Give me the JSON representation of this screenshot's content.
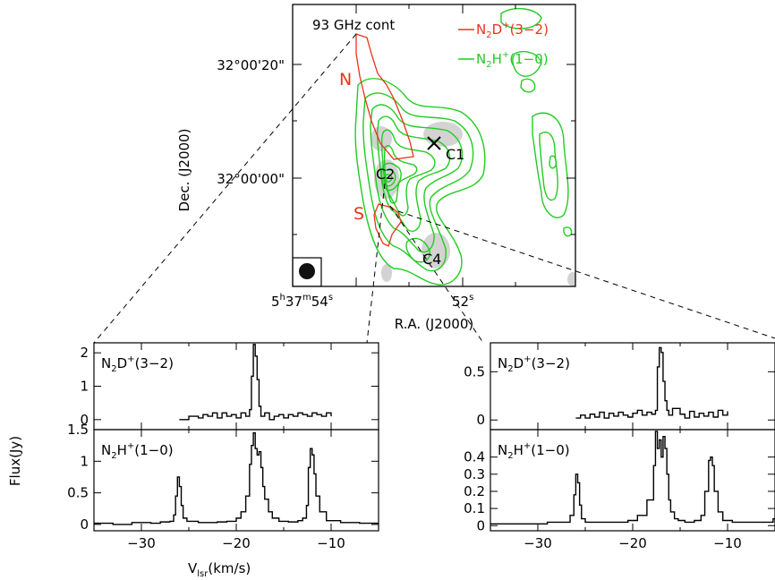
{
  "map": {
    "continuum_label": "93 GHz cont",
    "legend": [
      {
        "prefix": "N",
        "sub": "2",
        "mid": "D",
        "sup": "+",
        "suffix": "(3−2)",
        "color": "#e8331b"
      },
      {
        "prefix": "N",
        "sub": "2",
        "mid": "H",
        "sup": "+",
        "suffix": "(1−0)",
        "color": "#22cc22"
      }
    ],
    "ylabel": "Dec. (J2000)",
    "xlabel": "R.A. (J2000)",
    "dec_ticks": [
      "32°00'20\"",
      "32°00'00\""
    ],
    "ra_tick_left": {
      "h": "5",
      "m": "37",
      "s": "54"
    },
    "ra_tick_right": {
      "s": "52"
    },
    "regions": [
      "N",
      "S"
    ],
    "sources": [
      "C1",
      "C2",
      "C4"
    ]
  },
  "chart_data": [
    {
      "type": "line",
      "panel": "left-top",
      "label": {
        "prefix": "N",
        "sub": "2",
        "mid": "D",
        "sup": "+",
        "suffix": "(3−2)"
      },
      "xlim": [
        -35,
        -5
      ],
      "ylim": [
        -0.3,
        2.3
      ],
      "yticks": [
        "0",
        "1",
        "2"
      ],
      "ytick_values": [
        0,
        1,
        2
      ],
      "x": [
        -26,
        -25,
        -24,
        -23.5,
        -23,
        -22.5,
        -22,
        -21.5,
        -21,
        -20.5,
        -20,
        -19.5,
        -19,
        -18.6,
        -18.4,
        -18.2,
        -18.0,
        -17.8,
        -17.6,
        -17.4,
        -17,
        -16.5,
        -16,
        -15.5,
        -15,
        -14.5,
        -14,
        -13.5,
        -13,
        -12.5,
        -12,
        -11.5,
        -11,
        -10.5,
        -10
      ],
      "y": [
        0,
        0.1,
        0.05,
        0.15,
        0.1,
        0.2,
        0.05,
        0.2,
        0.1,
        0.15,
        0.05,
        0.2,
        0.1,
        0.3,
        1.3,
        2.25,
        1.9,
        1.2,
        0.4,
        0.1,
        0.2,
        0,
        0.1,
        0.15,
        0.05,
        0.15,
        0.1,
        0.2,
        0.15,
        0.1,
        0.2,
        0.15,
        0.1,
        0.2,
        0.1
      ]
    },
    {
      "type": "line",
      "panel": "left-bottom",
      "label": {
        "prefix": "N",
        "sub": "2",
        "mid": "H",
        "sup": "+",
        "suffix": "(1−0)"
      },
      "xlim": [
        -35,
        -5
      ],
      "ylim": [
        -0.1,
        1.5
      ],
      "yticks": [
        "0",
        "0.5",
        "1",
        "1.5"
      ],
      "ytick_values": [
        0,
        0.5,
        1,
        1.5
      ],
      "x": [
        -35,
        -33,
        -31,
        -29,
        -28,
        -27,
        -26.6,
        -26.4,
        -26.2,
        -26.0,
        -25.8,
        -25.6,
        -25.2,
        -24,
        -22,
        -21,
        -20,
        -19.5,
        -19,
        -18.6,
        -18.4,
        -18.2,
        -18.0,
        -17.8,
        -17.6,
        -17.4,
        -17.2,
        -17.0,
        -16.6,
        -16.2,
        -15.5,
        -14.5,
        -13.5,
        -13,
        -12.6,
        -12.4,
        -12.2,
        -12.0,
        -11.8,
        -11.6,
        -11.2,
        -10.5,
        -9,
        -7,
        -5
      ],
      "y": [
        0.02,
        0,
        0.03,
        0.02,
        0.04,
        0.05,
        0.15,
        0.45,
        0.75,
        0.6,
        0.3,
        0.1,
        0.05,
        0.03,
        0.04,
        0.05,
        0.1,
        0.2,
        0.45,
        0.95,
        1.25,
        1.45,
        1.2,
        1.1,
        1.15,
        0.9,
        0.6,
        0.4,
        0.2,
        0.1,
        0.05,
        0.04,
        0.06,
        0.1,
        0.3,
        0.9,
        1.2,
        1.1,
        0.8,
        0.45,
        0.2,
        0.06,
        0.03,
        0.02,
        0.02
      ]
    },
    {
      "type": "line",
      "panel": "right-top",
      "label": {
        "prefix": "N",
        "sub": "2",
        "mid": "D",
        "sup": "+",
        "suffix": "(3−2)"
      },
      "xlim": [
        -35,
        -5
      ],
      "ylim": [
        -0.1,
        0.8
      ],
      "yticks": [
        "0",
        "0.5"
      ],
      "ytick_values": [
        0,
        0.5
      ],
      "x": [
        -26,
        -25.5,
        -25,
        -24.5,
        -24,
        -23.5,
        -23,
        -22.5,
        -22,
        -21.5,
        -21,
        -20.5,
        -20,
        -19.5,
        -19,
        -18.5,
        -18,
        -17.6,
        -17.4,
        -17.2,
        -17.0,
        -16.8,
        -16.6,
        -16.4,
        -16.2,
        -15.8,
        -15,
        -14.5,
        -14,
        -13.5,
        -13,
        -12.5,
        -12,
        -11.5,
        -11,
        -10.5,
        -10
      ],
      "y": [
        0.02,
        0.05,
        0.02,
        0.06,
        0.03,
        0.08,
        0.02,
        0.07,
        0.04,
        0.08,
        0.05,
        0.03,
        0.07,
        0.1,
        0.05,
        0.08,
        0.06,
        0.1,
        0.55,
        0.75,
        0.7,
        0.4,
        0.2,
        0.1,
        0.05,
        0.12,
        0.06,
        0.02,
        0.09,
        0.03,
        0.07,
        0.04,
        0.08,
        0.03,
        0.1,
        0.05,
        0.09
      ]
    },
    {
      "type": "line",
      "panel": "right-bottom",
      "label": {
        "prefix": "N",
        "sub": "2",
        "mid": "H",
        "sup": "+",
        "suffix": "(1−0)"
      },
      "xlim": [
        -35,
        -5
      ],
      "ylim": [
        -0.03,
        0.56
      ],
      "yticks": [
        "0",
        "0.1",
        "0.2",
        "0.3",
        "0.4"
      ],
      "ytick_values": [
        0,
        0.1,
        0.2,
        0.3,
        0.4
      ],
      "x": [
        -35,
        -33,
        -31,
        -29,
        -27.5,
        -26.6,
        -26.2,
        -26.0,
        -25.8,
        -25.6,
        -25.4,
        -25.0,
        -24,
        -22,
        -20.5,
        -19.5,
        -18.5,
        -17.8,
        -17.6,
        -17.4,
        -17.2,
        -17.0,
        -16.8,
        -16.6,
        -16.4,
        -16.2,
        -16.0,
        -15.6,
        -15.2,
        -14.5,
        -13.5,
        -12.8,
        -12.4,
        -12.0,
        -11.8,
        -11.6,
        -11.4,
        -11.0,
        -10.5,
        -9.5,
        -8,
        -6.5,
        -5.5,
        -5.2,
        -5
      ],
      "y": [
        0.01,
        0.01,
        0.01,
        0.02,
        0.02,
        0.06,
        0.18,
        0.3,
        0.25,
        0.12,
        0.04,
        0.02,
        0.02,
        0.02,
        0.03,
        0.06,
        0.15,
        0.35,
        0.55,
        0.45,
        0.5,
        0.4,
        0.52,
        0.45,
        0.3,
        0.15,
        0.08,
        0.04,
        0.03,
        0.02,
        0.03,
        0.06,
        0.2,
        0.38,
        0.4,
        0.35,
        0.2,
        0.08,
        0.03,
        0.02,
        0.02,
        0.02,
        0.02,
        0.04,
        0.02
      ]
    }
  ],
  "spectra": {
    "ylabel": "Flux(Jy)",
    "xticks": [
      "−30",
      "−20",
      "−10"
    ],
    "xtick_values": [
      -30,
      -20,
      -10
    ],
    "xlabel_main": "V",
    "xlabel_sub": "lsr",
    "xlabel_suffix": "(km/s)"
  },
  "colors": {
    "red": "#e8331b",
    "green": "#22cc22",
    "gray": "#cfcfcf",
    "black": "#000000"
  }
}
